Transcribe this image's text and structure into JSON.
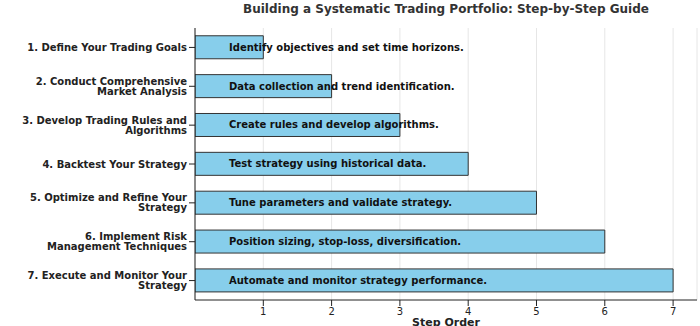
{
  "chart_data": {
    "type": "bar",
    "orientation": "horizontal",
    "title": "Building a Systematic Trading Portfolio: Step-by-Step Guide",
    "x_label": "Step Order",
    "categories": [
      "1. Define Your Trading Goals",
      "2. Conduct Comprehensive Market Analysis",
      "3. Develop Trading Rules and Algorithms",
      "4. Backtest Your Strategy",
      "5. Optimize and Refine Your Strategy",
      "6. Implement Risk Management Techniques",
      "7. Execute and Monitor Your Strategy"
    ],
    "values": [
      1,
      2,
      3,
      4,
      5,
      6,
      7
    ],
    "annotations": [
      "Identify objectives and set time horizons.",
      "Data collection and trend identification.",
      "Create rules and develop algorithms.",
      "Test strategy using historical data.",
      "Tune parameters and validate strategy.",
      "Position sizing, stop-loss, diversification.",
      "Automate and monitor strategy performance."
    ],
    "color": "#87ceeb",
    "xlim": [
      0,
      7.35
    ],
    "xticks": [
      1,
      2,
      3,
      4,
      5,
      6,
      7
    ],
    "grid": true
  }
}
